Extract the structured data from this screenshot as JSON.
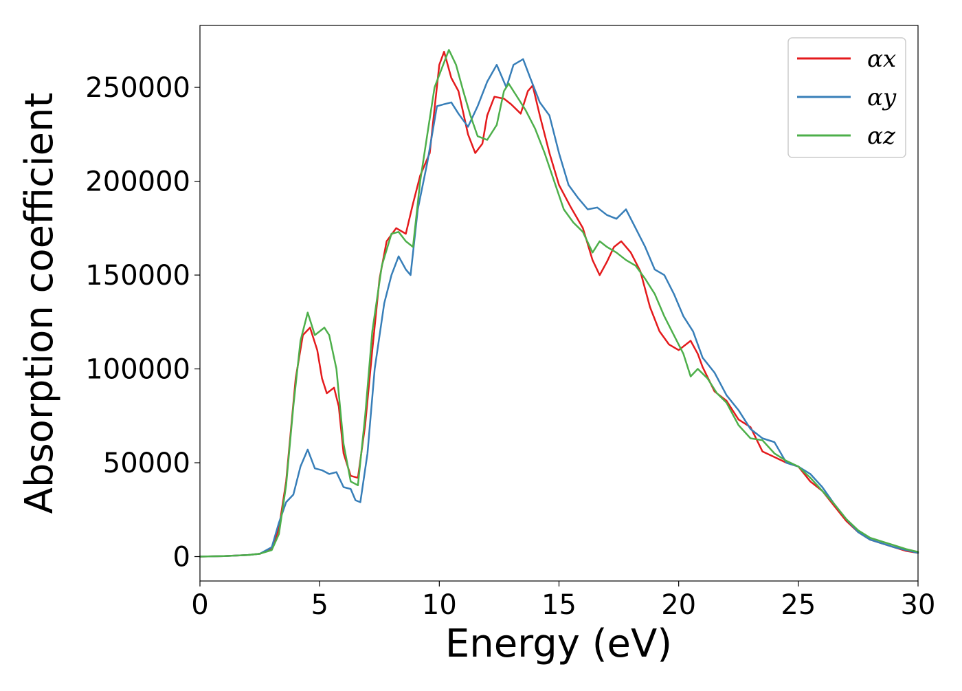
{
  "chart_data": {
    "type": "line",
    "title": "",
    "xlabel": "Energy (eV)",
    "ylabel": "Absorption coefficient",
    "xlim": [
      0,
      30
    ],
    "ylim": [
      -13000,
      283000
    ],
    "x_ticks": [
      "0",
      "5",
      "10",
      "15",
      "20",
      "25",
      "30"
    ],
    "y_ticks": [
      "0",
      "50000",
      "100000",
      "150000",
      "200000",
      "250000"
    ],
    "grid": false,
    "legend_position": "top-right",
    "series": [
      {
        "name": "αx",
        "color": "#e41a1c",
        "x": [
          0,
          1,
          2,
          2.5,
          3,
          3.3,
          3.6,
          4.0,
          4.3,
          4.6,
          4.9,
          5.1,
          5.3,
          5.6,
          5.8,
          6.0,
          6.3,
          6.6,
          6.9,
          7.2,
          7.5,
          7.8,
          8.2,
          8.6,
          8.9,
          9.2,
          9.6,
          10.0,
          10.2,
          10.5,
          10.8,
          11.2,
          11.5,
          11.8,
          12.0,
          12.3,
          12.7,
          13.0,
          13.4,
          13.7,
          13.9,
          14.2,
          14.6,
          15.0,
          15.5,
          16.0,
          16.4,
          16.7,
          17.0,
          17.3,
          17.6,
          18.0,
          18.4,
          18.8,
          19.2,
          19.6,
          20.0,
          20.5,
          20.8,
          21.0,
          21.5,
          22.0,
          22.5,
          23.0,
          23.5,
          24.0,
          24.5,
          25.0,
          25.5,
          26.0,
          26.5,
          27.0,
          27.5,
          28.0,
          28.5,
          29.0,
          29.5,
          30.0
        ],
        "y": [
          0,
          300,
          800,
          1500,
          4000,
          15000,
          40000,
          95000,
          118000,
          122000,
          110000,
          95000,
          87000,
          90000,
          80000,
          55000,
          43000,
          42000,
          70000,
          110000,
          148000,
          168000,
          175000,
          172000,
          188000,
          203000,
          215000,
          262000,
          269000,
          255000,
          248000,
          225000,
          215000,
          220000,
          235000,
          245000,
          244000,
          241000,
          236000,
          248000,
          251000,
          235000,
          215000,
          198000,
          186000,
          175000,
          158000,
          150000,
          157000,
          165000,
          168000,
          162000,
          152000,
          133000,
          120000,
          113000,
          110000,
          115000,
          108000,
          101000,
          88000,
          83000,
          73000,
          69000,
          56000,
          53000,
          50000,
          48000,
          40000,
          35000,
          27000,
          19000,
          13000,
          9000,
          7000,
          5000,
          3000,
          2000
        ]
      },
      {
        "name": "αy",
        "color": "#377eb8",
        "x": [
          0,
          1,
          2,
          2.5,
          3,
          3.3,
          3.6,
          3.9,
          4.2,
          4.5,
          4.8,
          5.1,
          5.4,
          5.7,
          6.0,
          6.3,
          6.5,
          6.7,
          7.0,
          7.3,
          7.7,
          8.0,
          8.3,
          8.6,
          8.8,
          9.1,
          9.5,
          9.9,
          10.2,
          10.5,
          10.8,
          11.2,
          11.6,
          12.0,
          12.4,
          12.8,
          13.1,
          13.5,
          13.8,
          14.2,
          14.6,
          15.0,
          15.4,
          15.8,
          16.2,
          16.6,
          17.0,
          17.4,
          17.8,
          18.2,
          18.6,
          19.0,
          19.4,
          19.8,
          20.2,
          20.6,
          21.0,
          21.5,
          22.0,
          22.5,
          23.0,
          23.5,
          24.0,
          24.5,
          25.0,
          25.5,
          26.0,
          26.5,
          27.0,
          27.5,
          28.0,
          28.5,
          29.0,
          29.5,
          30.0
        ],
        "y": [
          0,
          300,
          800,
          1500,
          5000,
          18000,
          29000,
          33000,
          48000,
          57000,
          47000,
          46000,
          44000,
          45000,
          37000,
          36000,
          30000,
          29000,
          55000,
          100000,
          135000,
          150000,
          160000,
          153000,
          150000,
          185000,
          210000,
          240000,
          241000,
          242000,
          236000,
          229000,
          240000,
          253000,
          262000,
          250000,
          262000,
          265000,
          255000,
          242000,
          235000,
          215000,
          198000,
          191000,
          185000,
          186000,
          182000,
          180000,
          185000,
          175000,
          165000,
          153000,
          150000,
          140000,
          128000,
          120000,
          106000,
          98000,
          86000,
          78000,
          68000,
          63000,
          61000,
          50000,
          48000,
          44000,
          37000,
          28000,
          20000,
          13000,
          9000,
          7000,
          5000,
          3500,
          2000
        ]
      },
      {
        "name": "αz",
        "color": "#4daf4a",
        "x": [
          0,
          1,
          2,
          2.5,
          3,
          3.3,
          3.6,
          3.9,
          4.2,
          4.5,
          4.8,
          5.0,
          5.2,
          5.4,
          5.7,
          6.0,
          6.3,
          6.6,
          6.9,
          7.2,
          7.6,
          8.0,
          8.3,
          8.6,
          8.9,
          9.2,
          9.5,
          9.8,
          10.1,
          10.4,
          10.7,
          11.0,
          11.3,
          11.6,
          12.0,
          12.4,
          12.7,
          12.9,
          13.2,
          13.6,
          14.0,
          14.4,
          14.8,
          15.2,
          15.6,
          16.0,
          16.4,
          16.7,
          17.0,
          17.4,
          17.8,
          18.2,
          18.6,
          19.0,
          19.4,
          19.8,
          20.2,
          20.5,
          20.8,
          21.2,
          21.6,
          22.0,
          22.5,
          23.0,
          23.5,
          24.0,
          24.5,
          25.0,
          25.5,
          26.0,
          26.5,
          27.0,
          27.5,
          28.0,
          28.5,
          29.0,
          29.5,
          30.0
        ],
        "y": [
          0,
          300,
          800,
          1500,
          3500,
          12000,
          38000,
          80000,
          115000,
          130000,
          118000,
          120000,
          122000,
          118000,
          100000,
          60000,
          40000,
          38000,
          75000,
          120000,
          155000,
          172000,
          173000,
          168000,
          165000,
          200000,
          225000,
          250000,
          260000,
          270000,
          262000,
          248000,
          235000,
          224000,
          222000,
          230000,
          248000,
          252000,
          246000,
          238000,
          228000,
          215000,
          200000,
          185000,
          178000,
          173000,
          162000,
          168000,
          165000,
          162000,
          158000,
          155000,
          148000,
          140000,
          128000,
          118000,
          108000,
          96000,
          100000,
          95000,
          87000,
          82000,
          70000,
          63000,
          62000,
          55000,
          51000,
          48000,
          42000,
          35000,
          28000,
          20000,
          14000,
          10000,
          8000,
          6000,
          4000,
          2500
        ]
      }
    ]
  }
}
